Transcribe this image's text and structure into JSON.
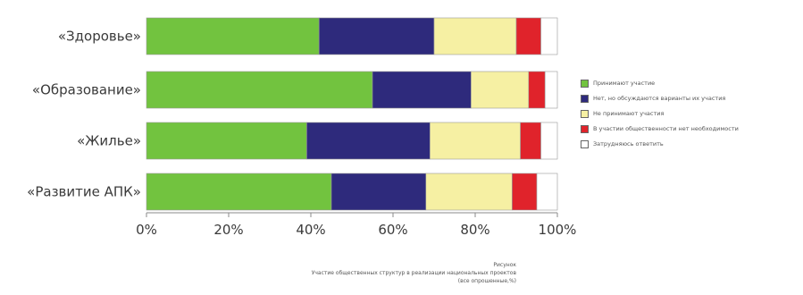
{
  "chart_data": {
    "type": "bar",
    "orientation": "horizontal",
    "stacked": true,
    "categories": [
      "«Здоровье»",
      "«Образование»",
      "«Жилье»",
      "«Развитие АПК»"
    ],
    "series": [
      {
        "name": "Принимают участие",
        "color": "#72c33f",
        "values": [
          42,
          55,
          39,
          45
        ]
      },
      {
        "name": "Нет, но обсуждаются варианты их участия",
        "color": "#2e2a7c",
        "values": [
          28,
          24,
          30,
          23
        ]
      },
      {
        "name": "Не принимают участия",
        "color": "#f6f0a3",
        "values": [
          20,
          14,
          22,
          21
        ]
      },
      {
        "name": "В участии общественности нет необходимости",
        "color": "#e0232b",
        "values": [
          6,
          4,
          5,
          6
        ]
      },
      {
        "name": "Затрудняюсь ответить",
        "color": "#ffffff",
        "values": [
          4,
          3,
          4,
          5
        ]
      }
    ],
    "xlim": [
      0,
      100
    ],
    "xticks": [
      "0%",
      "20%",
      "40%",
      "60%",
      "80%",
      "100%"
    ],
    "xlabel": "",
    "ylabel": "",
    "grid": false,
    "legend_position": "right"
  },
  "caption": {
    "line1": "Рисунок",
    "line2": "Участие общественных структур в реализации национальных проектов",
    "line3": "(все опрошенные,%)"
  }
}
